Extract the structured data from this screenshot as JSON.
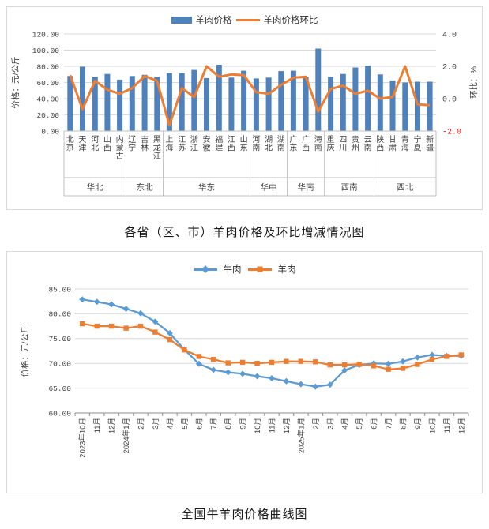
{
  "colors": {
    "bar_blue": "#4F81BD",
    "line_orange": "#ED7D31",
    "beef_blue": "#5B9BD5",
    "mutton_orange": "#ED7D31",
    "grid": "#D9D9D9",
    "axis": "#BFBFBF",
    "axis_dark": "#8C8C8C",
    "tick_text": "#404040",
    "negative_red": "#FF0000"
  },
  "chart_data": [
    {
      "type": "bar+line",
      "title": "各省（区、市）羊肉价格及环比增减情况图",
      "legend": [
        "羊肉价格",
        "羊肉价格环比"
      ],
      "axis_left": {
        "label": "价格：元/公斤",
        "ticks": [
          "120.00",
          "100.00",
          "80.00",
          "60.00",
          "40.00",
          "20.00",
          "0.00"
        ],
        "range": [
          0,
          120
        ]
      },
      "axis_right": {
        "label": "环比：%",
        "ticks": [
          "4.0",
          "2.0",
          "0.0",
          "-2.0"
        ],
        "range": [
          -2,
          4
        ]
      },
      "regions": [
        {
          "name": "华北",
          "provinces": [
            "北京",
            "天津",
            "河北",
            "山西",
            "内蒙古"
          ]
        },
        {
          "name": "东北",
          "provinces": [
            "辽宁",
            "吉林",
            "黑龙江"
          ]
        },
        {
          "name": "华东",
          "provinces": [
            "上海",
            "江苏",
            "浙江",
            "安徽",
            "福建",
            "江西",
            "山东"
          ]
        },
        {
          "name": "华中",
          "provinces": [
            "河南",
            "湖北",
            "湖南"
          ]
        },
        {
          "name": "华南",
          "provinces": [
            "广东",
            "广西",
            "海南"
          ]
        },
        {
          "name": "西南",
          "provinces": [
            "重庆",
            "四川",
            "贵州",
            "云南"
          ]
        },
        {
          "name": "西北",
          "provinces": [
            "陕西",
            "甘肃",
            "青海",
            "宁夏",
            "新疆"
          ]
        }
      ],
      "series": [
        {
          "name": "羊肉价格",
          "kind": "bar",
          "axis": "left",
          "values": [
            68,
            79.5,
            67,
            70.5,
            63.5,
            68,
            69.5,
            67,
            71.5,
            71.5,
            75.5,
            65.5,
            82,
            66,
            74.5,
            65,
            66,
            74,
            74.5,
            67,
            102,
            67,
            70.5,
            78.5,
            81,
            70,
            62.5,
            60,
            61,
            61
          ]
        },
        {
          "name": "羊肉价格环比",
          "kind": "line",
          "axis": "right",
          "values": [
            1.45,
            -0.65,
            1.1,
            0.55,
            0.3,
            0.65,
            1.4,
            1.1,
            -1.65,
            0.65,
            0.1,
            2.0,
            1.35,
            1.5,
            1.45,
            0.4,
            0.3,
            0.85,
            1.3,
            1.35,
            -0.8,
            0.6,
            0.8,
            0.3,
            0.5,
            0.0,
            0.1,
            2.0,
            -0.35,
            -0.4
          ]
        }
      ]
    },
    {
      "type": "line",
      "title": "全国牛羊肉价格曲线图",
      "legend": [
        "牛肉",
        "羊肉"
      ],
      "axis_y": {
        "label": "价格：元/公斤",
        "ticks": [
          "85.00",
          "80.00",
          "75.00",
          "70.00",
          "65.00",
          "60.00"
        ],
        "range": [
          60,
          85
        ]
      },
      "x": [
        "2023年10月",
        "11月",
        "12月",
        "2024年1月",
        "2月",
        "3月",
        "4月",
        "5月",
        "6月",
        "7月",
        "8月",
        "9月",
        "10月",
        "11月",
        "12月",
        "2025年1月",
        "2月",
        "3月",
        "4月",
        "5月",
        "6月",
        "7月",
        "8月",
        "9月",
        "10月",
        "11月",
        "12月"
      ],
      "series": [
        {
          "name": "牛肉",
          "marker": "diamond",
          "color": "#5B9BD5",
          "values": [
            82.9,
            82.4,
            81.9,
            81.0,
            80.1,
            78.4,
            76.1,
            72.8,
            69.9,
            68.7,
            68.2,
            67.9,
            67.4,
            67.0,
            66.4,
            65.8,
            65.3,
            65.7,
            68.6,
            69.7,
            70.0,
            69.9,
            70.4,
            71.2,
            71.7,
            71.5,
            71.5
          ]
        },
        {
          "name": "羊肉",
          "marker": "square",
          "color": "#ED7D31",
          "values": [
            78.0,
            77.5,
            77.5,
            77.1,
            77.5,
            76.3,
            74.8,
            72.7,
            71.4,
            70.8,
            70.1,
            70.2,
            70.0,
            70.2,
            70.4,
            70.4,
            70.3,
            69.7,
            69.7,
            69.8,
            69.5,
            68.8,
            69.0,
            69.8,
            70.8,
            71.4,
            71.7
          ]
        }
      ]
    }
  ]
}
